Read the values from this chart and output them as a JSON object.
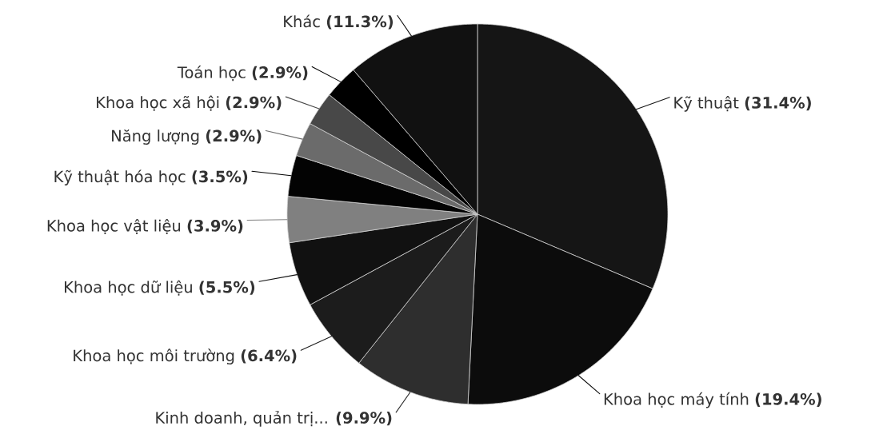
{
  "chart_data": {
    "type": "pie",
    "categories": [
      "Kỹ thuật",
      "Khoa học máy tính",
      "Kinh doanh, quản trị...",
      "Khoa học môi trường",
      "Khoa học dữ liệu",
      "Khoa học vật liệu",
      "Kỹ thuật hóa học",
      "Năng lượng",
      "Khoa học xã hội",
      "Toán học",
      "Khác"
    ],
    "values": [
      31.4,
      19.4,
      9.9,
      6.4,
      5.5,
      3.9,
      3.5,
      2.9,
      2.9,
      2.9,
      11.3
    ],
    "colors": [
      "#151515",
      "#0c0c0c",
      "#2e2e2e",
      "#1c1c1c",
      "#111111",
      "#808080",
      "#030303",
      "#6b6b6b",
      "#484848",
      "#000000",
      "#111111"
    ],
    "value_labels": [
      "(31.4%)",
      "(19.4%)",
      "(9.9%)",
      "(6.4%)",
      "(5.5%)",
      "(3.9%)",
      "(3.5%)",
      "(2.9%)",
      "(2.9%)",
      "(2.9%)",
      "(11.3%)"
    ]
  }
}
